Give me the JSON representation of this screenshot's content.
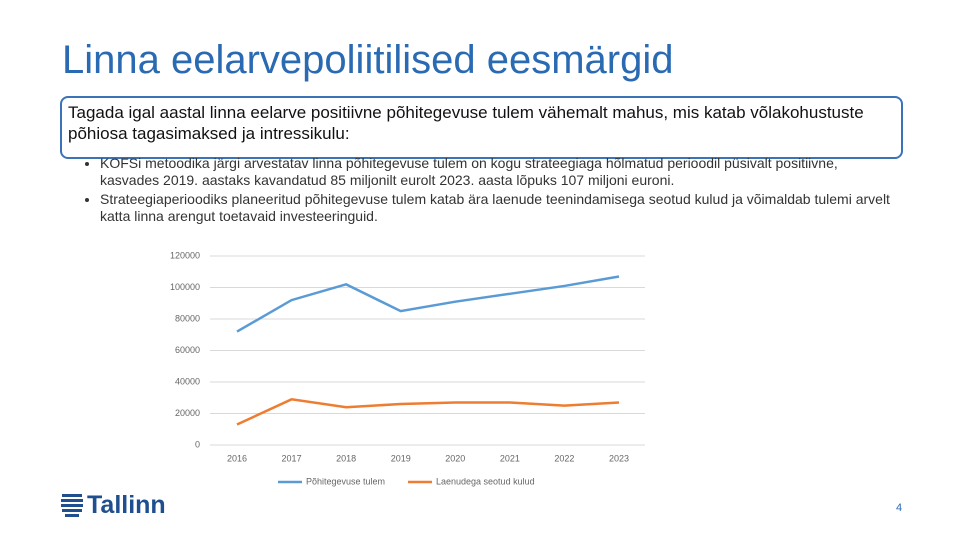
{
  "title": "Linna eelarvepoliitilised eesmärgid",
  "box_text": "Tagada igal aastal linna eelarve positiivne põhitegevuse tulem vähemalt mahus, mis katab võlakohustuste põhiosa tagasimaksed ja intressikulu:",
  "bullets": [
    "KOFSi metoodika järgi arvestatav linna põhitegevuse tulem on kogu strateegiaga hõlmatud perioodil püsivalt positiivne, kasvades 2019. aastaks kavandatud 85 miljonilt eurolt 2023. aasta lõpuks 107 miljoni euroni.",
    "Strateegiaperioodiks planeeritud põhitegevuse tulem katab ära laenude teenindamisega seotud kulud ja võimaldab tulemi arvelt katta linna arengut toetavaid investeeringuid."
  ],
  "chart_data": {
    "type": "line",
    "categories": [
      "2016",
      "2017",
      "2018",
      "2019",
      "2020",
      "2021",
      "2022",
      "2023"
    ],
    "series": [
      {
        "name": "Põhitegevuse tulem",
        "color": "#5b9bd5",
        "values": [
          72000,
          92000,
          102000,
          85000,
          91000,
          96000,
          101000,
          107000
        ]
      },
      {
        "name": "Laenudega seotud kulud",
        "color": "#ed7d31",
        "values": [
          13000,
          29000,
          24000,
          26000,
          27000,
          27000,
          25000,
          27000
        ]
      }
    ],
    "ylim": [
      0,
      120000
    ],
    "yticks": [
      0,
      20000,
      40000,
      60000,
      80000,
      100000,
      120000
    ],
    "grid": true,
    "legend": "bottom"
  },
  "logo": "Tallinn",
  "page_number": "4"
}
